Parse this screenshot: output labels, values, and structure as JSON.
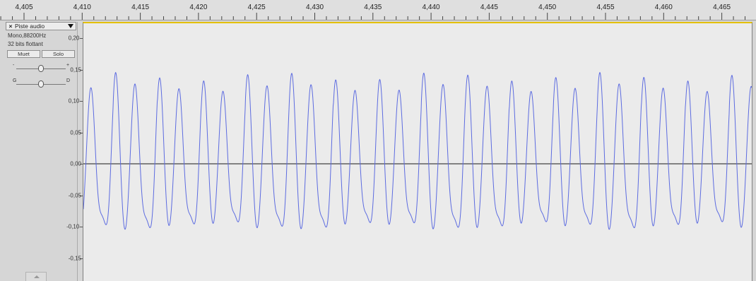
{
  "timeline": {
    "labels": [
      "4,405",
      "4,410",
      "4,415",
      "4,420",
      "4,425",
      "4,430",
      "4,435",
      "4,440",
      "4,445",
      "4,450",
      "4,455",
      "4,460",
      "4,465"
    ]
  },
  "track": {
    "name": "Piste audio",
    "close_glyph": "×",
    "format_rate": "Mono,88200Hz",
    "format_bits": "32 bits flottant",
    "mute_label": "Muet",
    "solo_label": "Solo",
    "gain": {
      "min_label": "-",
      "max_label": "+",
      "value": 0.5
    },
    "pan": {
      "min_label": "G",
      "max_label": "D",
      "value": 0.5
    }
  },
  "amplitude_ruler": {
    "labels": [
      "0,20-",
      "0,15",
      "0,10-",
      "0,05",
      "0,00",
      "-0,05",
      "-0,10-",
      "-0,15"
    ]
  },
  "colors": {
    "waveform": "#5c6be0",
    "zero_line": "#444444",
    "selection_border": "#e3c000",
    "background": "#ebebeb"
  }
}
